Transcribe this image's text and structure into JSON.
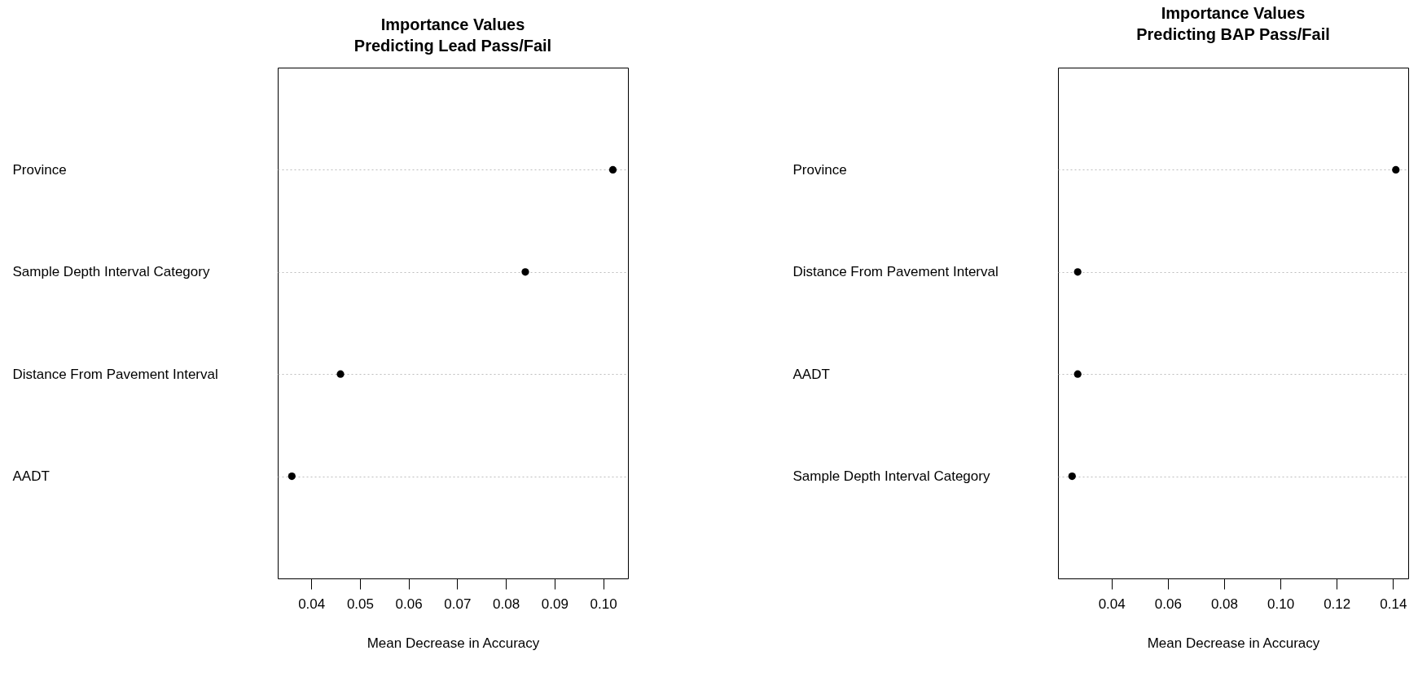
{
  "chart_data": [
    {
      "type": "scatter",
      "orientation": "horizontal",
      "title": "Importance Values\nPredicting Lead Pass/Fail",
      "xlabel": "Mean Decrease in Accuracy",
      "categories": [
        "Province",
        "Sample Depth Interval Category",
        "Distance From Pavement Interval",
        "AADT"
      ],
      "values": [
        0.102,
        0.084,
        0.046,
        0.036
      ],
      "color": "#000000",
      "marker": "circle",
      "grid": "y",
      "xlim": [
        0.0331,
        0.1051
      ],
      "xticks": [
        0.04,
        0.05,
        0.06,
        0.07,
        0.08,
        0.09,
        {
          "value": 0.1,
          "label": "0.10"
        }
      ]
    },
    {
      "type": "scatter",
      "orientation": "horizontal",
      "title": "Importance Values\nPredicting BAP Pass/Fail",
      "xlabel": "Mean Decrease in Accuracy",
      "categories": [
        "Province",
        "Distance From Pavement Interval",
        "AADT",
        "Sample Depth Interval Category"
      ],
      "values": [
        0.141,
        0.028,
        0.028,
        0.026
      ],
      "color": "#000000",
      "marker": "circle",
      "grid": "y",
      "xlim": [
        0.021,
        0.1454
      ],
      "xticks": [
        0.04,
        0.06,
        0.08,
        {
          "value": 0.1,
          "label": "0.10"
        },
        0.12,
        0.14
      ]
    }
  ]
}
